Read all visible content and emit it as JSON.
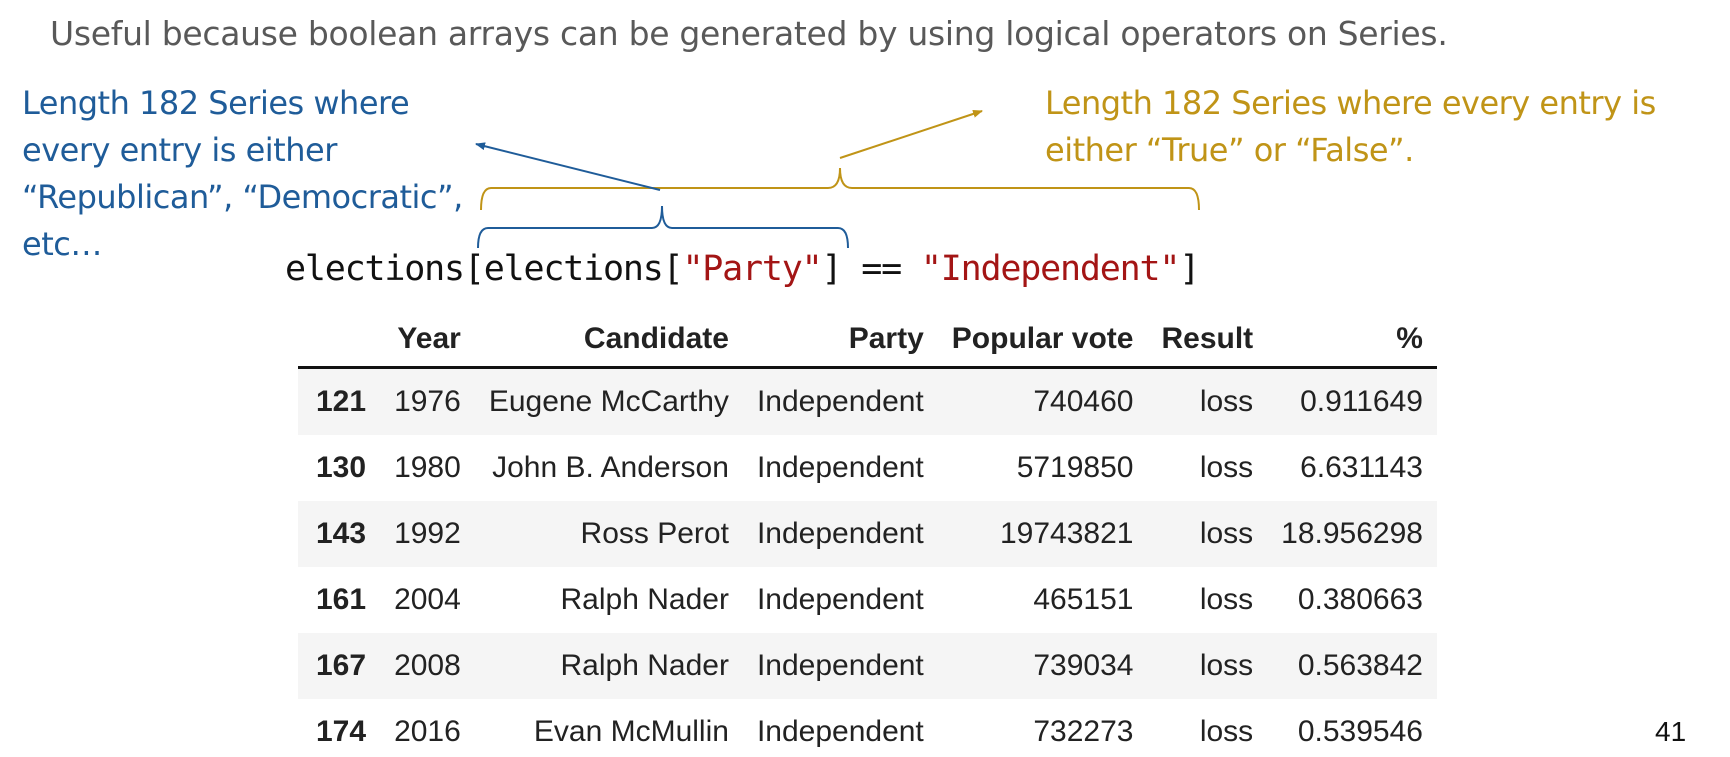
{
  "intro_text": "Useful because boolean arrays can be generated by using logical operators on Series.",
  "blue_note": {
    "lines": [
      "Length 182 Series where",
      "every entry is either",
      "“Republican”, “Democratic”,",
      "etc…"
    ],
    "color": "#1f5c99"
  },
  "gold_note": {
    "lines": [
      "Length 182 Series where every entry is",
      "either “True” or “False”."
    ],
    "color": "#c09417"
  },
  "code": {
    "p1": "elections[elections[",
    "s1": "\"Party\"",
    "p2": "] == ",
    "s2": "\"Independent\"",
    "p3": "]"
  },
  "table": {
    "columns": [
      "",
      "Year",
      "Candidate",
      "Party",
      "Popular vote",
      "Result",
      "%"
    ],
    "rows": [
      {
        "index": "121",
        "year": "1976",
        "candidate": "Eugene McCarthy",
        "party": "Independent",
        "popular_vote": "740460",
        "result": "loss",
        "pct": "0.911649"
      },
      {
        "index": "130",
        "year": "1980",
        "candidate": "John B. Anderson",
        "party": "Independent",
        "popular_vote": "5719850",
        "result": "loss",
        "pct": "6.631143"
      },
      {
        "index": "143",
        "year": "1992",
        "candidate": "Ross Perot",
        "party": "Independent",
        "popular_vote": "19743821",
        "result": "loss",
        "pct": "18.956298"
      },
      {
        "index": "161",
        "year": "2004",
        "candidate": "Ralph Nader",
        "party": "Independent",
        "popular_vote": "465151",
        "result": "loss",
        "pct": "0.380663"
      },
      {
        "index": "167",
        "year": "2008",
        "candidate": "Ralph Nader",
        "party": "Independent",
        "popular_vote": "739034",
        "result": "loss",
        "pct": "0.563842"
      },
      {
        "index": "174",
        "year": "2016",
        "candidate": "Evan McMullin",
        "party": "Independent",
        "popular_vote": "732273",
        "result": "loss",
        "pct": "0.539546"
      }
    ]
  },
  "page_number": "41"
}
